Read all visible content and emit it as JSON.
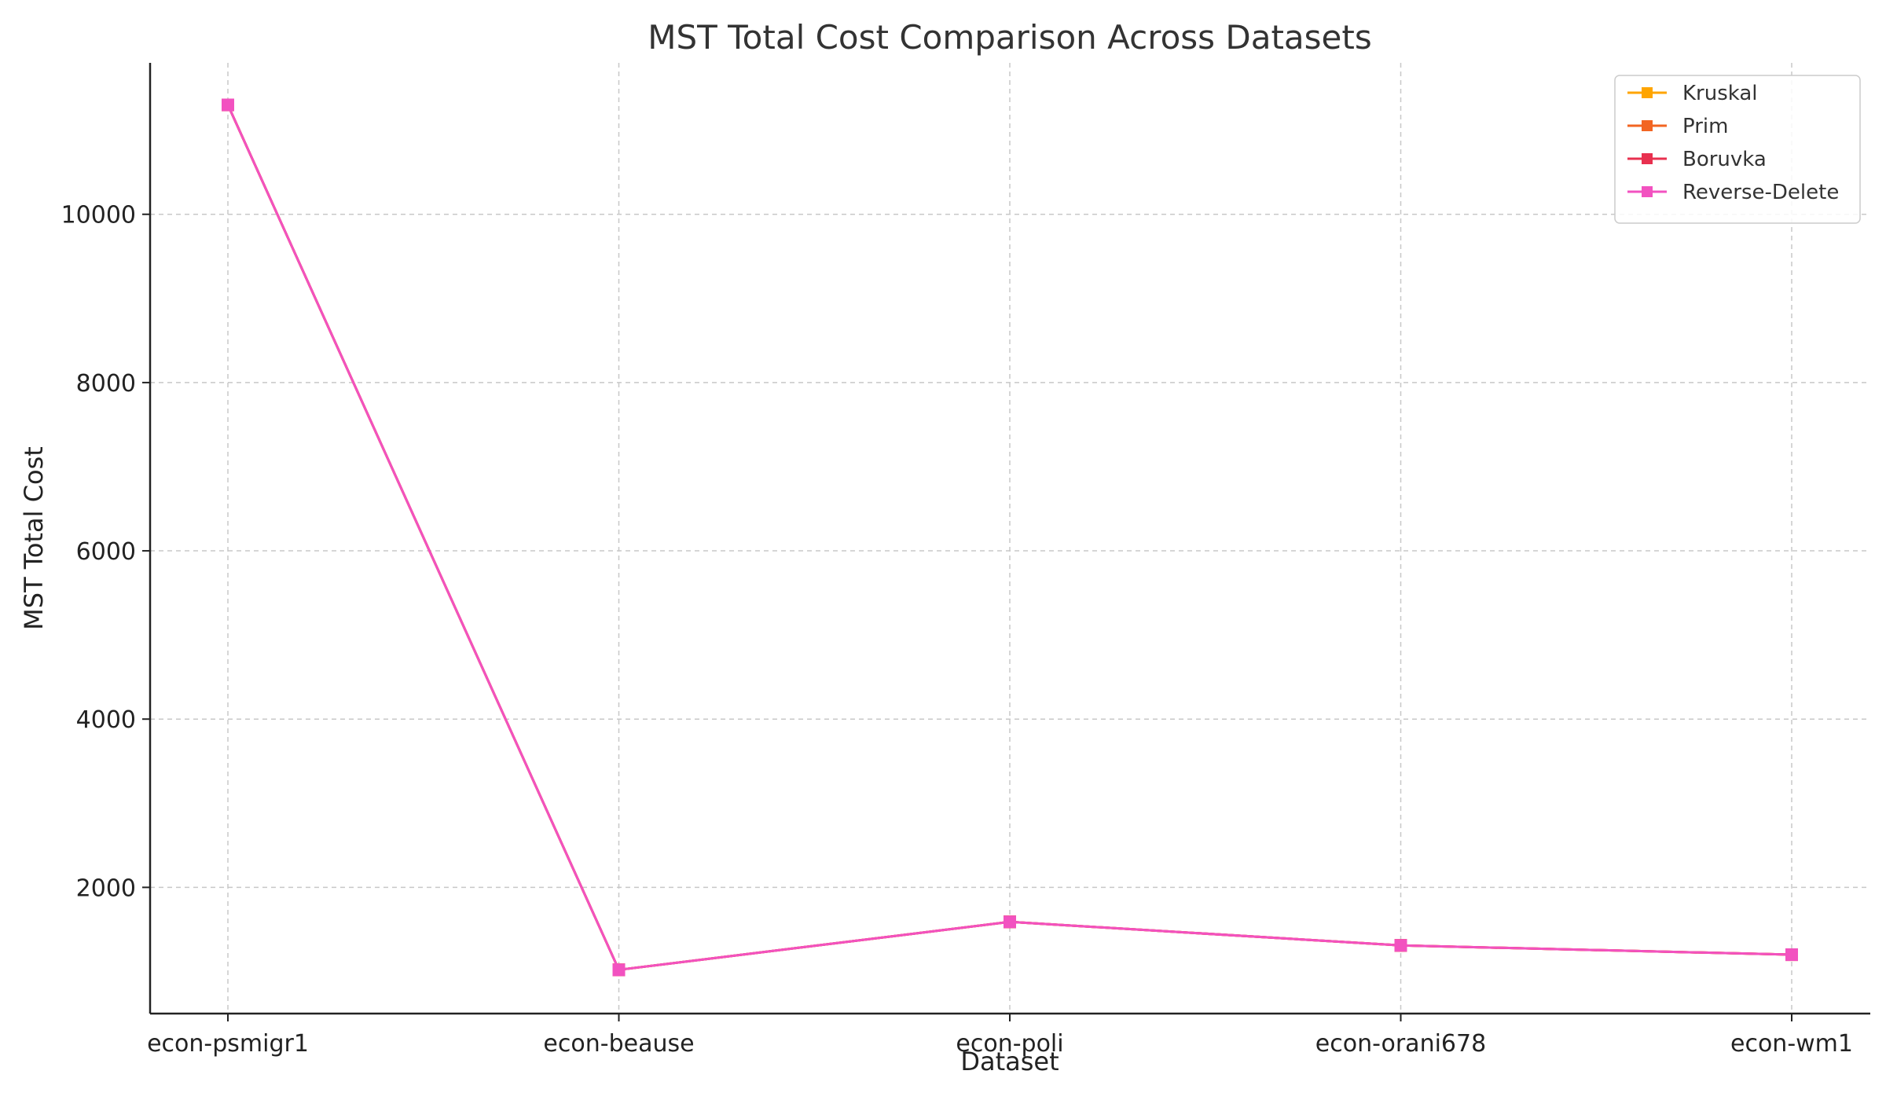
{
  "chart_data": {
    "type": "line",
    "title": "MST Total Cost Comparison Across Datasets",
    "xlabel": "Dataset",
    "ylabel": "MST Total Cost",
    "categories": [
      "econ-psmigr1",
      "econ-beause",
      "econ-poli",
      "econ-orani678",
      "econ-wm1"
    ],
    "ylim": [
      500,
      11800
    ],
    "yticks": [
      2000,
      4000,
      6000,
      8000,
      10000
    ],
    "grid": true,
    "legend_position": "top-right",
    "marker": "square",
    "series": [
      {
        "name": "Kruskal",
        "color": "#FFA500",
        "values": [
          11300,
          1020,
          1590,
          1310,
          1200
        ]
      },
      {
        "name": "Prim",
        "color": "#F26522",
        "values": [
          11300,
          1020,
          1590,
          1310,
          1200
        ]
      },
      {
        "name": "Boruvka",
        "color": "#E8304F",
        "values": [
          11300,
          1020,
          1590,
          1310,
          1200
        ]
      },
      {
        "name": "Reverse-Delete",
        "color": "#F252C0",
        "values": [
          11300,
          1020,
          1590,
          1310,
          1200
        ]
      }
    ]
  }
}
